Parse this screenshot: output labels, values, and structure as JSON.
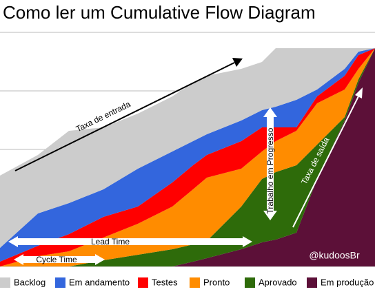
{
  "chart_data": {
    "type": "stacked_area",
    "title": "Como ler um Cumulative Flow Diagram",
    "x": [
      0,
      55,
      100,
      150,
      200,
      250,
      280,
      300,
      350,
      380,
      400,
      430,
      460,
      500,
      520,
      544
    ],
    "xlim": [
      0,
      544
    ],
    "ylim": [
      0,
      340
    ],
    "yticks": [
      0,
      85,
      170,
      255,
      340
    ],
    "grid": true,
    "series": [
      {
        "name": "Backlog",
        "color": "#cccccc",
        "values": [
          105,
          85,
          105,
          90,
          80,
          80,
          85,
          85,
          75,
          70,
          85,
          75,
          60,
          30,
          5,
          0
        ]
      },
      {
        "name": "Em andamento",
        "color": "#3366dd",
        "values": [
          20,
          47,
          45,
          40,
          55,
          45,
          35,
          30,
          30,
          25,
          30,
          40,
          10,
          10,
          5,
          0
        ]
      },
      {
        "name": "Testes",
        "color": "#ff0000",
        "values": [
          7,
          15,
          25,
          30,
          25,
          35,
          35,
          33,
          40,
          35,
          20,
          5,
          10,
          20,
          20,
          0
        ]
      },
      {
        "name": "Pronto",
        "color": "#ff8c00",
        "values": [
          0,
          15,
          22,
          33,
          45,
          62,
          80,
          92,
          55,
          40,
          45,
          50,
          60,
          40,
          15,
          0
        ]
      },
      {
        "name": "Aprovado",
        "color": "#2e6b0a",
        "values": [
          0,
          0,
          0,
          9,
          17,
          25,
          25,
          25,
          62,
          92,
          98,
          98,
          50,
          5,
          5,
          0
        ]
      },
      {
        "name": "Em produção",
        "color": "#5c1038",
        "values": [
          0,
          0,
          0,
          0,
          0,
          0,
          7,
          12,
          25,
          35,
          39,
          49,
          127,
          212,
          267,
          317
        ]
      }
    ],
    "annotations": [
      "Taxa de entrada",
      "Trabalho em Progresso",
      "Taxa de saída",
      "Lead Time",
      "Cycle Time",
      "@kudoosBr"
    ]
  }
}
